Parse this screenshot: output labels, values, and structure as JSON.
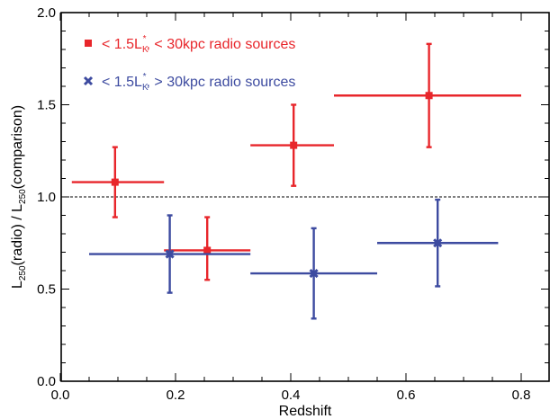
{
  "chart_data": {
    "type": "scatter",
    "xlabel": "Redshift",
    "ylabel_parts": [
      "L",
      "250",
      "(radio) / L",
      "250",
      "(comparison)"
    ],
    "xlim": [
      0.0,
      0.85
    ],
    "ylim": [
      0.0,
      2.0
    ],
    "x_ticks": [
      0.0,
      0.2,
      0.4,
      0.6,
      0.8
    ],
    "x_tick_labels": [
      "0.0",
      "0.2",
      "0.4",
      "0.6",
      "0.8"
    ],
    "y_ticks": [
      0.0,
      0.5,
      1.0,
      1.5,
      2.0
    ],
    "y_tick_labels": [
      "0.0",
      "0.5",
      "1.0",
      "1.5",
      "2.0"
    ],
    "reference_line": 1.0,
    "legend_position": "top-left",
    "series": [
      {
        "name_parts": [
          "< 1.5L",
          "K",
          "*",
          ", < 30kpc radio sources"
        ],
        "color": "#e8262b",
        "marker": "square",
        "points": [
          {
            "x": 0.095,
            "y": 1.08,
            "xlo": 0.02,
            "xhi": 0.18,
            "ylo": 0.89,
            "yhi": 1.27
          },
          {
            "x": 0.255,
            "y": 0.71,
            "xlo": 0.18,
            "xhi": 0.33,
            "ylo": 0.55,
            "yhi": 0.89
          },
          {
            "x": 0.405,
            "y": 1.28,
            "xlo": 0.33,
            "xhi": 0.475,
            "ylo": 1.06,
            "yhi": 1.5
          },
          {
            "x": 0.64,
            "y": 1.55,
            "xlo": 0.475,
            "xhi": 0.8,
            "ylo": 1.27,
            "yhi": 1.83
          }
        ]
      },
      {
        "name_parts": [
          "< 1.5L",
          "K",
          "*",
          ", > 30kpc radio sources"
        ],
        "color": "#3d4ba0",
        "marker": "x",
        "points": [
          {
            "x": 0.19,
            "y": 0.69,
            "xlo": 0.05,
            "xhi": 0.33,
            "ylo": 0.48,
            "yhi": 0.9
          },
          {
            "x": 0.44,
            "y": 0.585,
            "xlo": 0.33,
            "xhi": 0.55,
            "ylo": 0.34,
            "yhi": 0.83
          },
          {
            "x": 0.655,
            "y": 0.75,
            "xlo": 0.55,
            "xhi": 0.76,
            "ylo": 0.515,
            "yhi": 0.985
          }
        ]
      }
    ]
  }
}
